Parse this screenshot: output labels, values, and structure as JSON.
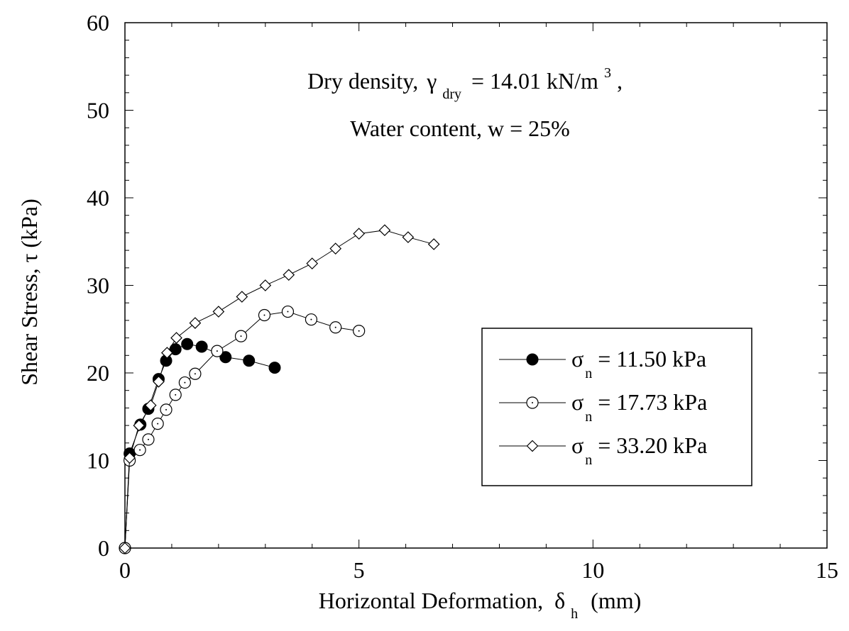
{
  "chart_data": {
    "type": "scatter",
    "title": "",
    "xlabel": {
      "main": "Horizontal Deformation,",
      "symbol": "δ",
      "subscript": "h",
      "unit": "(mm)"
    },
    "ylabel": "Shear Stress, τ (kPa)",
    "xlim": [
      0,
      15
    ],
    "ylim": [
      0,
      60
    ],
    "xticks": [
      0,
      5,
      10,
      15
    ],
    "yticks": [
      0,
      10,
      20,
      30,
      40,
      50,
      60
    ],
    "grid": false,
    "legend_position": "right-middle",
    "annotation": {
      "line1_prefix": "Dry density,",
      "line1_symbol": "γ",
      "line1_subscript": "dry",
      "line1_value": "= 14.01 kN/m",
      "line1_superscript": "3",
      "line1_suffix": ",",
      "line2": "Water content, w = 25%"
    },
    "series": [
      {
        "name": "σ",
        "name_subscript": "n",
        "name_value": "= 11.50 kPa",
        "marker": "filled-circle",
        "x": [
          0,
          0.1,
          0.33,
          0.5,
          0.72,
          0.88,
          1.08,
          1.33,
          1.64,
          2.15,
          2.65,
          3.2
        ],
        "y": [
          0,
          10.8,
          14.1,
          15.9,
          19.3,
          21.4,
          22.7,
          23.3,
          23.0,
          21.8,
          21.4,
          20.6
        ]
      },
      {
        "name": "σ",
        "name_subscript": "n",
        "name_value": "= 17.73 kPa",
        "marker": "open-circle",
        "x": [
          0,
          0.1,
          0.32,
          0.5,
          0.7,
          0.88,
          1.08,
          1.28,
          1.5,
          1.97,
          2.48,
          2.98,
          3.48,
          3.98,
          4.5,
          5.0
        ],
        "y": [
          0,
          10.0,
          11.2,
          12.4,
          14.2,
          15.8,
          17.5,
          18.9,
          19.9,
          22.5,
          24.2,
          26.6,
          27.0,
          26.1,
          25.2,
          24.8
        ]
      },
      {
        "name": "σ",
        "name_subscript": "n",
        "name_value": "= 33.20 kPa",
        "marker": "open-diamond",
        "x": [
          0,
          0.1,
          0.3,
          0.55,
          0.72,
          0.9,
          1.1,
          1.5,
          2.0,
          2.5,
          3.0,
          3.5,
          4.0,
          4.5,
          5.0,
          5.55,
          6.05,
          6.6
        ],
        "y": [
          0,
          10.3,
          14.0,
          16.3,
          19.0,
          22.3,
          24.0,
          25.7,
          27.0,
          28.7,
          30.0,
          31.2,
          32.5,
          34.2,
          35.9,
          36.3,
          35.5,
          34.7
        ]
      }
    ]
  }
}
